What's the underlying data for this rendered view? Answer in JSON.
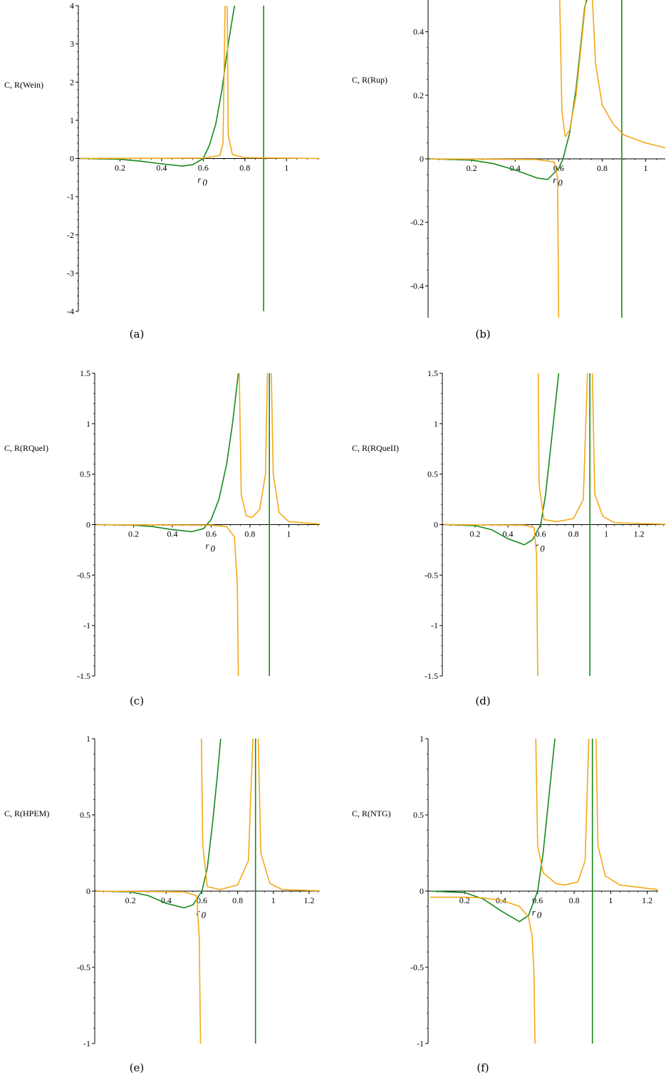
{
  "chart_data": [
    {
      "type": "line",
      "caption": "(a)",
      "ylabel": "C, R(Wein)",
      "xlabel": "r",
      "xlabel_sub": "0",
      "xlim": [
        0,
        1.16
      ],
      "ylim": [
        -4,
        4
      ],
      "xticks": [
        "0.2",
        "0.4",
        "0.6",
        "0.8",
        "1"
      ],
      "yticks": [
        "4",
        "3",
        "2",
        "1",
        "0",
        "-1",
        "-2",
        "-3",
        "-4"
      ],
      "series": [
        {
          "color": "#178a1c",
          "values": [
            [
              0.01,
              0
            ],
            [
              0.2,
              -0.02
            ],
            [
              0.3,
              -0.07
            ],
            [
              0.4,
              -0.14
            ],
            [
              0.5,
              -0.2
            ],
            [
              0.55,
              -0.16
            ],
            [
              0.6,
              0
            ],
            [
              0.63,
              0.35
            ],
            [
              0.66,
              0.9
            ],
            [
              0.69,
              1.8
            ],
            [
              0.72,
              3.0
            ],
            [
              0.75,
              4.0
            ]
          ]
        },
        {
          "color": "#178a1c",
          "values": [
            [
              0.89,
              4
            ],
            [
              0.89,
              -4
            ]
          ]
        },
        {
          "color": "#f5a81a",
          "values": [
            [
              0.01,
              0
            ],
            [
              0.6,
              0.01
            ],
            [
              0.68,
              0.08
            ],
            [
              0.695,
              0.4
            ],
            [
              0.705,
              4
            ]
          ]
        },
        {
          "color": "#f5a81a",
          "values": [
            [
              0.715,
              4
            ],
            [
              0.72,
              0.6
            ],
            [
              0.74,
              0.1
            ],
            [
              0.8,
              0.02
            ],
            [
              1.16,
              0
            ]
          ]
        }
      ]
    },
    {
      "type": "line",
      "caption": "(b)",
      "ylabel": "C, R(Rup)",
      "xlabel": "r",
      "xlabel_sub": "0",
      "xlim": [
        0,
        1.09
      ],
      "ylim": [
        -0.5,
        0.5
      ],
      "xticks": [
        "0.2",
        "0.4",
        "0.6",
        "0.8",
        "1"
      ],
      "yticks": [
        "0.4",
        "0.2",
        "0",
        "-0.2",
        "-0.4"
      ],
      "series": [
        {
          "color": "#178a1c",
          "values": [
            [
              0.01,
              0
            ],
            [
              0.2,
              -0.004
            ],
            [
              0.3,
              -0.015
            ],
            [
              0.4,
              -0.035
            ],
            [
              0.5,
              -0.06
            ],
            [
              0.55,
              -0.065
            ],
            [
              0.6,
              -0.03
            ],
            [
              0.62,
              0
            ],
            [
              0.65,
              0.08
            ],
            [
              0.68,
              0.22
            ],
            [
              0.7,
              0.35
            ],
            [
              0.72,
              0.48
            ],
            [
              0.73,
              0.5
            ]
          ]
        },
        {
          "color": "#178a1c",
          "values": [
            [
              0.89,
              0.5
            ],
            [
              0.89,
              -0.5
            ]
          ]
        },
        {
          "color": "#f5a81a",
          "values": [
            [
              0.01,
              0
            ],
            [
              0.5,
              -0.002
            ],
            [
              0.58,
              -0.01
            ],
            [
              0.595,
              -0.06
            ],
            [
              0.6,
              -0.5
            ]
          ]
        },
        {
          "color": "#f5a81a",
          "values": [
            [
              0.605,
              0.5
            ],
            [
              0.615,
              0.15
            ],
            [
              0.63,
              0.07
            ],
            [
              0.65,
              0.09
            ],
            [
              0.68,
              0.2
            ],
            [
              0.71,
              0.4
            ],
            [
              0.725,
              0.5
            ]
          ]
        },
        {
          "color": "#f5a81a",
          "values": [
            [
              0.755,
              0.5
            ],
            [
              0.77,
              0.3
            ],
            [
              0.8,
              0.17
            ],
            [
              0.85,
              0.11
            ],
            [
              0.9,
              0.075
            ],
            [
              1.0,
              0.05
            ],
            [
              1.09,
              0.035
            ]
          ]
        }
      ]
    },
    {
      "type": "line",
      "caption": "(c)",
      "ylabel": "C, R(RQueI)",
      "xlabel": "r",
      "xlabel_sub": "0",
      "xlim": [
        0,
        1.16
      ],
      "ylim": [
        -1.5,
        1.5
      ],
      "xticks": [
        "0.2",
        "0.4",
        "0.6",
        "0.8",
        "1"
      ],
      "yticks": [
        "1.5",
        "1",
        "0.5",
        "0",
        "-0.5",
        "-1",
        "-1.5"
      ],
      "series": [
        {
          "color": "#178a1c",
          "values": [
            [
              0.01,
              0
            ],
            [
              0.2,
              -0.005
            ],
            [
              0.3,
              -0.02
            ],
            [
              0.4,
              -0.05
            ],
            [
              0.5,
              -0.07
            ],
            [
              0.56,
              -0.04
            ],
            [
              0.6,
              0.05
            ],
            [
              0.64,
              0.25
            ],
            [
              0.68,
              0.6
            ],
            [
              0.71,
              1.0
            ],
            [
              0.74,
              1.5
            ]
          ]
        },
        {
          "color": "#178a1c",
          "values": [
            [
              0.9,
              1.5
            ],
            [
              0.9,
              -1.5
            ]
          ]
        },
        {
          "color": "#f5a81a",
          "values": [
            [
              0.01,
              0
            ],
            [
              0.6,
              -0.005
            ],
            [
              0.68,
              -0.02
            ],
            [
              0.72,
              -0.12
            ],
            [
              0.735,
              -0.6
            ],
            [
              0.74,
              -1.5
            ]
          ]
        },
        {
          "color": "#f5a81a",
          "values": [
            [
              0.745,
              1.5
            ],
            [
              0.755,
              0.3
            ],
            [
              0.78,
              0.09
            ],
            [
              0.81,
              0.07
            ],
            [
              0.85,
              0.15
            ],
            [
              0.88,
              0.5
            ],
            [
              0.89,
              1.5
            ]
          ]
        },
        {
          "color": "#f5a81a",
          "values": [
            [
              0.91,
              1.5
            ],
            [
              0.92,
              0.5
            ],
            [
              0.95,
              0.12
            ],
            [
              1.0,
              0.03
            ],
            [
              1.16,
              0.005
            ]
          ]
        }
      ]
    },
    {
      "type": "line",
      "caption": "(d)",
      "ylabel": "C, R(RQueII)",
      "xlabel": "r",
      "xlabel_sub": "0",
      "xlim": [
        0,
        1.36
      ],
      "ylim": [
        -1.5,
        1.5
      ],
      "xticks": [
        "0.2",
        "0.4",
        "0.6",
        "0.8",
        "1",
        "1.2"
      ],
      "yticks": [
        "1.5",
        "1",
        "0.5",
        "0",
        "-0.5",
        "-1",
        "-1.5"
      ],
      "series": [
        {
          "color": "#178a1c",
          "values": [
            [
              0.01,
              0
            ],
            [
              0.2,
              -0.01
            ],
            [
              0.3,
              -0.05
            ],
            [
              0.4,
              -0.14
            ],
            [
              0.5,
              -0.2
            ],
            [
              0.55,
              -0.15
            ],
            [
              0.6,
              0
            ],
            [
              0.63,
              0.3
            ],
            [
              0.66,
              0.75
            ],
            [
              0.69,
              1.2
            ],
            [
              0.71,
              1.5
            ]
          ]
        },
        {
          "color": "#178a1c",
          "values": [
            [
              0.9,
              1.5
            ],
            [
              0.9,
              -1.5
            ]
          ]
        },
        {
          "color": "#f5a81a",
          "values": [
            [
              0.01,
              0
            ],
            [
              0.5,
              -0.005
            ],
            [
              0.56,
              -0.03
            ],
            [
              0.575,
              -0.3
            ],
            [
              0.582,
              -1.5
            ]
          ]
        },
        {
          "color": "#f5a81a",
          "values": [
            [
              0.585,
              1.5
            ],
            [
              0.59,
              0.4
            ],
            [
              0.62,
              0.05
            ],
            [
              0.7,
              0.03
            ],
            [
              0.8,
              0.06
            ],
            [
              0.86,
              0.25
            ],
            [
              0.885,
              1.5
            ]
          ]
        },
        {
          "color": "#f5a81a",
          "values": [
            [
              0.915,
              1.5
            ],
            [
              0.93,
              0.3
            ],
            [
              0.98,
              0.08
            ],
            [
              1.05,
              0.02
            ],
            [
              1.36,
              0.003
            ]
          ]
        }
      ]
    },
    {
      "type": "line",
      "caption": "(e)",
      "ylabel": "C, R(HPEM)",
      "xlabel": "r",
      "xlabel_sub": "0",
      "xlim": [
        0,
        1.26
      ],
      "ylim": [
        -1,
        1
      ],
      "xticks": [
        "0.2",
        "0.4",
        "0.6",
        "0.8",
        "1",
        "1.2"
      ],
      "yticks": [
        "1",
        "0.5",
        "0",
        "-0.5",
        "-1"
      ],
      "series": [
        {
          "color": "#178a1c",
          "values": [
            [
              0.01,
              0
            ],
            [
              0.2,
              -0.005
            ],
            [
              0.3,
              -0.03
            ],
            [
              0.4,
              -0.08
            ],
            [
              0.5,
              -0.11
            ],
            [
              0.55,
              -0.09
            ],
            [
              0.6,
              0
            ],
            [
              0.63,
              0.15
            ],
            [
              0.66,
              0.45
            ],
            [
              0.69,
              0.8
            ],
            [
              0.705,
              1.0
            ]
          ]
        },
        {
          "color": "#178a1c",
          "values": [
            [
              0.9,
              1
            ],
            [
              0.9,
              -1
            ]
          ]
        },
        {
          "color": "#f5a81a",
          "values": [
            [
              0.01,
              0
            ],
            [
              0.5,
              -0.005
            ],
            [
              0.57,
              -0.03
            ],
            [
              0.585,
              -0.3
            ],
            [
              0.592,
              -1
            ]
          ]
        },
        {
          "color": "#f5a81a",
          "values": [
            [
              0.597,
              1
            ],
            [
              0.605,
              0.3
            ],
            [
              0.63,
              0.03
            ],
            [
              0.7,
              0.01
            ],
            [
              0.8,
              0.04
            ],
            [
              0.86,
              0.2
            ],
            [
              0.885,
              1
            ]
          ]
        },
        {
          "color": "#f5a81a",
          "values": [
            [
              0.915,
              1
            ],
            [
              0.93,
              0.25
            ],
            [
              0.98,
              0.05
            ],
            [
              1.05,
              0.01
            ],
            [
              1.26,
              0.002
            ]
          ]
        }
      ]
    },
    {
      "type": "line",
      "caption": "(f)",
      "ylabel": "C, R(NTG)",
      "xlabel": "r",
      "xlabel_sub": "0",
      "xlim": [
        0,
        1.26
      ],
      "ylim": [
        -1,
        1
      ],
      "xticks": [
        "0.2",
        "0.4",
        "0.6",
        "0.8",
        "1",
        "1.2"
      ],
      "yticks": [
        "1",
        "0.5",
        "0",
        "-0.5",
        "-1"
      ],
      "series": [
        {
          "color": "#178a1c",
          "values": [
            [
              0.01,
              0
            ],
            [
              0.2,
              -0.01
            ],
            [
              0.3,
              -0.05
            ],
            [
              0.4,
              -0.13
            ],
            [
              0.5,
              -0.2
            ],
            [
              0.55,
              -0.16
            ],
            [
              0.6,
              0
            ],
            [
              0.63,
              0.25
            ],
            [
              0.66,
              0.6
            ],
            [
              0.69,
              0.95
            ],
            [
              0.695,
              1.0
            ]
          ]
        },
        {
          "color": "#178a1c",
          "values": [
            [
              0.9,
              1
            ],
            [
              0.9,
              -1
            ]
          ]
        },
        {
          "color": "#f5a81a",
          "values": [
            [
              0.01,
              -0.04
            ],
            [
              0.2,
              -0.04
            ],
            [
              0.3,
              -0.045
            ],
            [
              0.4,
              -0.06
            ],
            [
              0.5,
              -0.1
            ],
            [
              0.55,
              -0.17
            ],
            [
              0.57,
              -0.3
            ],
            [
              0.58,
              -0.55
            ],
            [
              0.585,
              -1
            ]
          ]
        },
        {
          "color": "#f5a81a",
          "values": [
            [
              0.59,
              1
            ],
            [
              0.6,
              0.3
            ],
            [
              0.63,
              0.12
            ],
            [
              0.7,
              0.05
            ],
            [
              0.75,
              0.04
            ],
            [
              0.82,
              0.06
            ],
            [
              0.86,
              0.2
            ],
            [
              0.88,
              1
            ]
          ]
        },
        {
          "color": "#f5a81a",
          "values": [
            [
              0.92,
              1
            ],
            [
              0.93,
              0.3
            ],
            [
              0.97,
              0.1
            ],
            [
              1.05,
              0.04
            ],
            [
              1.26,
              0.01
            ]
          ]
        }
      ]
    }
  ]
}
